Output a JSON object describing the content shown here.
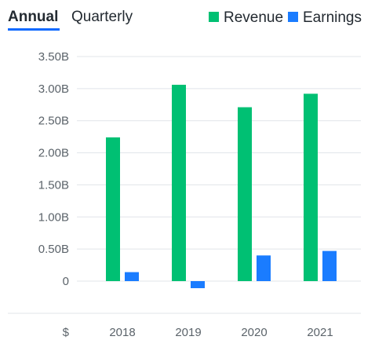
{
  "tabs": [
    {
      "label": "Annual",
      "active": true
    },
    {
      "label": "Quarterly",
      "active": false
    }
  ],
  "colors": {
    "revenue": "#00c073",
    "earnings": "#1a7cff",
    "grid": "#e0e4e9",
    "active_tab_underline": "#0f69ff"
  },
  "chart_data": {
    "type": "bar",
    "categories": [
      "2018",
      "2019",
      "2020",
      "2021"
    ],
    "series": [
      {
        "name": "Revenue",
        "values": [
          2.24,
          3.06,
          2.71,
          2.92
        ]
      },
      {
        "name": "Earnings",
        "values": [
          0.14,
          -0.11,
          0.4,
          0.47
        ]
      }
    ],
    "yticks": [
      {
        "value": 3.5,
        "label": "3.50B"
      },
      {
        "value": 3.0,
        "label": "3.00B"
      },
      {
        "value": 2.5,
        "label": "2.50B"
      },
      {
        "value": 2.0,
        "label": "2.00B"
      },
      {
        "value": 1.5,
        "label": "1.50B"
      },
      {
        "value": 1.0,
        "label": "1.00B"
      },
      {
        "value": 0.5,
        "label": "0.50B"
      },
      {
        "value": 0,
        "label": "0"
      }
    ],
    "currency_label": "$",
    "ylim": [
      -0.5,
      3.5
    ],
    "grid": true,
    "legend_position": "top-right",
    "title": "",
    "xlabel": "",
    "ylabel": ""
  }
}
